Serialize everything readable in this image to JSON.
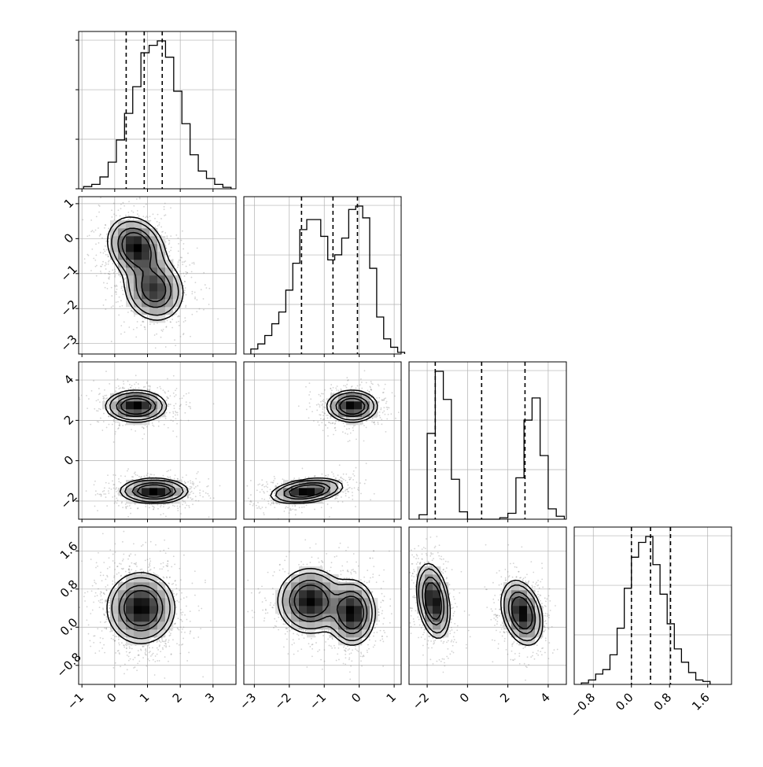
{
  "chart_data": {
    "type": "corner",
    "title": "",
    "params": [
      {
        "range": [
          -1.1,
          3.7
        ],
        "ticks": [
          -1,
          0,
          1,
          2,
          3
        ],
        "tick_labels": [
          "−1",
          "0",
          "1",
          "2",
          "3"
        ]
      },
      {
        "range": [
          -3.3,
          1.2
        ],
        "ticks": [
          -3,
          -2,
          -1,
          0,
          1
        ],
        "tick_labels": [
          "−3",
          "−2",
          "−1",
          "0",
          "1"
        ]
      },
      {
        "range": [
          -2.9,
          4.9
        ],
        "ticks": [
          -2,
          0,
          2,
          4
        ],
        "tick_labels": [
          "−2",
          "0",
          "2",
          "4"
        ]
      },
      {
        "range": [
          -1.2,
          2.1
        ],
        "ticks": [
          -0.8,
          0.0,
          0.8,
          1.6
        ],
        "tick_labels": [
          "−0.8",
          "0.0",
          "0.8",
          "1.6"
        ]
      }
    ],
    "quantiles": [
      [
        0.35,
        0.9,
        1.45
      ],
      [
        -1.65,
        -0.75,
        -0.05
      ],
      [
        -1.6,
        0.7,
        2.85
      ],
      [
        0.0,
        0.4,
        0.82
      ]
    ],
    "histograms": [
      {
        "start": -0.95,
        "bin_width": 0.25,
        "counts": [
          0.015,
          0.03,
          0.08,
          0.18,
          0.33,
          0.51,
          0.69,
          0.92,
          0.97,
          1.0,
          0.89,
          0.66,
          0.44,
          0.23,
          0.12,
          0.07,
          0.03,
          0.01
        ]
      },
      {
        "start": -3.1,
        "bin_width": 0.2,
        "counts": [
          0.03,
          0.06,
          0.11,
          0.18,
          0.25,
          0.38,
          0.54,
          0.74,
          0.8,
          0.8,
          0.7,
          0.56,
          0.59,
          0.69,
          0.86,
          0.88,
          0.81,
          0.51,
          0.22,
          0.09,
          0.04,
          0.01
        ]
      },
      {
        "start": -2.4,
        "bin_width": 0.4,
        "counts": [
          0.03,
          0.58,
          1.0,
          0.81,
          0.27,
          0.05,
          0.0,
          0.0,
          0.0,
          0.0,
          0.01,
          0.04,
          0.28,
          0.67,
          0.82,
          0.43,
          0.07,
          0.02
        ]
      },
      {
        "start": -1.05,
        "bin_width": 0.15,
        "counts": [
          0.01,
          0.03,
          0.07,
          0.1,
          0.2,
          0.38,
          0.65,
          0.86,
          0.96,
          1.0,
          0.81,
          0.61,
          0.41,
          0.24,
          0.15,
          0.08,
          0.03,
          0.02
        ]
      }
    ],
    "joint_components": [
      {
        "row": 1,
        "col": 0,
        "components": [
          {
            "cx": 0.65,
            "cy": -0.25,
            "sx": 0.42,
            "sy": 0.42,
            "rho": -0.2,
            "w": 0.55
          },
          {
            "cx": 1.2,
            "cy": -1.45,
            "sx": 0.45,
            "sy": 0.45,
            "rho": -0.1,
            "w": 0.45
          }
        ]
      },
      {
        "row": 2,
        "col": 0,
        "components": [
          {
            "cx": 0.65,
            "cy": 2.7,
            "sx": 0.45,
            "sy": 0.38,
            "rho": 0.0,
            "w": 0.5
          },
          {
            "cx": 1.2,
            "cy": -1.5,
            "sx": 0.5,
            "sy": 0.3,
            "rho": 0.0,
            "w": 0.5
          }
        ]
      },
      {
        "row": 2,
        "col": 1,
        "components": [
          {
            "cx": -0.2,
            "cy": 2.7,
            "sx": 0.35,
            "sy": 0.38,
            "rho": 0.0,
            "w": 0.5
          },
          {
            "cx": -1.5,
            "cy": -1.5,
            "sx": 0.5,
            "sy": 0.3,
            "rho": 0.35,
            "w": 0.5
          }
        ]
      },
      {
        "row": 3,
        "col": 0,
        "components": [
          {
            "cx": 0.8,
            "cy": 0.4,
            "sx": 0.5,
            "sy": 0.36,
            "rho": 0.0,
            "w": 1.0
          }
        ]
      },
      {
        "row": 3,
        "col": 1,
        "components": [
          {
            "cx": -1.4,
            "cy": 0.55,
            "sx": 0.45,
            "sy": 0.33,
            "rho": 0.0,
            "w": 0.5
          },
          {
            "cx": -0.2,
            "cy": 0.3,
            "sx": 0.32,
            "sy": 0.33,
            "rho": 0.0,
            "w": 0.5
          }
        ]
      },
      {
        "row": 3,
        "col": 2,
        "components": [
          {
            "cx": -1.7,
            "cy": 0.55,
            "sx": 0.4,
            "sy": 0.38,
            "rho": -0.3,
            "w": 0.5
          },
          {
            "cx": 2.7,
            "cy": 0.3,
            "sx": 0.5,
            "sy": 0.33,
            "rho": -0.3,
            "w": 0.5
          }
        ]
      }
    ],
    "contour_levels": [
      0.3,
      0.6,
      0.85
    ],
    "grid": true,
    "colors": {
      "line": "#000000",
      "grid": "#b0b0b0",
      "points": "#808080",
      "frame": "#000000"
    }
  }
}
